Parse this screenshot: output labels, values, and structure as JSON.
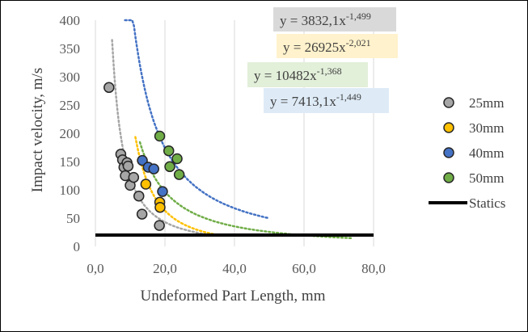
{
  "chart_data": {
    "type": "scatter",
    "title": "",
    "xlabel": "Undeformed Part Length, mm",
    "ylabel": "Impact velocity, m/s",
    "xlim": [
      0,
      80
    ],
    "ylim": [
      0,
      400
    ],
    "xticks": [
      0,
      20,
      40,
      60,
      80
    ],
    "xtick_labels": [
      "0,0",
      "20,0",
      "40,0",
      "60,0",
      "80,0"
    ],
    "yticks": [
      0,
      50,
      100,
      150,
      200,
      250,
      300,
      350,
      400
    ],
    "ytick_labels": [
      "0",
      "50",
      "100",
      "150",
      "200",
      "250",
      "300",
      "350",
      "400"
    ],
    "grid": "vertical",
    "legend": "right",
    "series": [
      {
        "name": "25mm",
        "color": "#a6a6a6",
        "points": [
          [
            3.9,
            281
          ],
          [
            7.3,
            163
          ],
          [
            7.8,
            153
          ],
          [
            8.2,
            140
          ],
          [
            8.6,
            125
          ],
          [
            9.1,
            148
          ],
          [
            9.4,
            142
          ],
          [
            10.0,
            108
          ],
          [
            11.0,
            122
          ],
          [
            12.5,
            89
          ],
          [
            13.4,
            57
          ],
          [
            18.4,
            37
          ]
        ],
        "trend": {
          "coef": 3832.1,
          "exp": -1.499,
          "x_from": 4.8,
          "x_to": 33.0,
          "equation_prefix": "y = 3832,1x",
          "equation_exp": "-1,499"
        }
      },
      {
        "name": "30mm",
        "color": "#ffc000",
        "points": [
          [
            14.5,
            110
          ],
          [
            18.5,
            78
          ],
          [
            18.6,
            69
          ]
        ],
        "trend": {
          "coef": 26925,
          "exp": -2.021,
          "x_from": 11.5,
          "x_to": 34.0,
          "equation_prefix": "y = 26925x",
          "equation_exp": "-2,021"
        }
      },
      {
        "name": "40mm",
        "color": "#4472c4",
        "points": [
          [
            13.5,
            152
          ],
          [
            15.2,
            140
          ],
          [
            16.8,
            137
          ],
          [
            19.3,
            97
          ]
        ],
        "trend": {
          "coef": 10482,
          "exp": -1.368,
          "x_from": 8.5,
          "x_to": 50.0,
          "equation_prefix": "y = 10482x",
          "equation_exp": "-1,368"
        }
      },
      {
        "name": "50mm",
        "color": "#70ad47",
        "points": [
          [
            18.5,
            195
          ],
          [
            21.1,
            169
          ],
          [
            21.4,
            141
          ],
          [
            23.5,
            155
          ],
          [
            24.1,
            127
          ]
        ],
        "trend": {
          "coef": 7413.1,
          "exp": -1.449,
          "x_from": 12.8,
          "x_to": 74.0,
          "equation_prefix": "y = 7413,1x",
          "equation_exp": "-1,449"
        }
      }
    ],
    "statics": {
      "name": "Statics",
      "y": 20,
      "x_from": 0,
      "x_to": 80,
      "color": "#000000"
    },
    "equation_boxes": [
      {
        "series": "25mm",
        "fill": "#d9d9d9"
      },
      {
        "series": "30mm",
        "fill": "#fff2cc"
      },
      {
        "series": "40mm",
        "fill": "#e2efd9"
      },
      {
        "series": "50mm",
        "fill": "#deebf7"
      }
    ]
  }
}
